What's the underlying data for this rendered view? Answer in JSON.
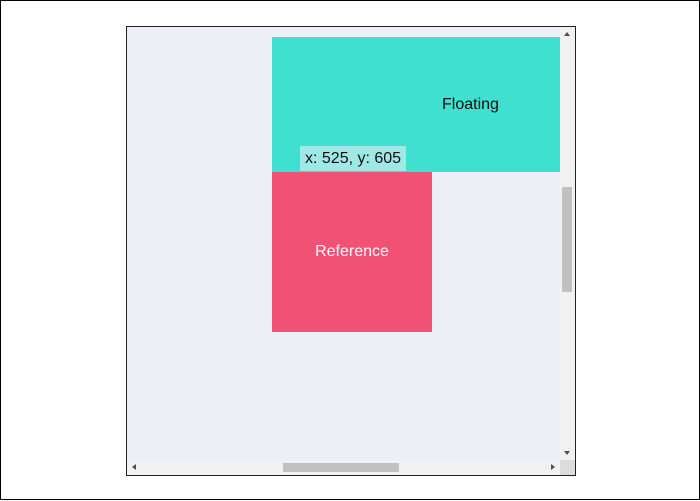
{
  "floating": {
    "label": "Floating",
    "color": "#40e0d0"
  },
  "reference": {
    "label": "Reference",
    "color": "#f05174"
  },
  "readout": {
    "text": "x: 525, y: 605"
  },
  "icons": {
    "scroll_up": "arrow-up-icon",
    "scroll_down": "arrow-down-icon",
    "scroll_left": "arrow-left-icon",
    "scroll_right": "arrow-right-icon"
  }
}
